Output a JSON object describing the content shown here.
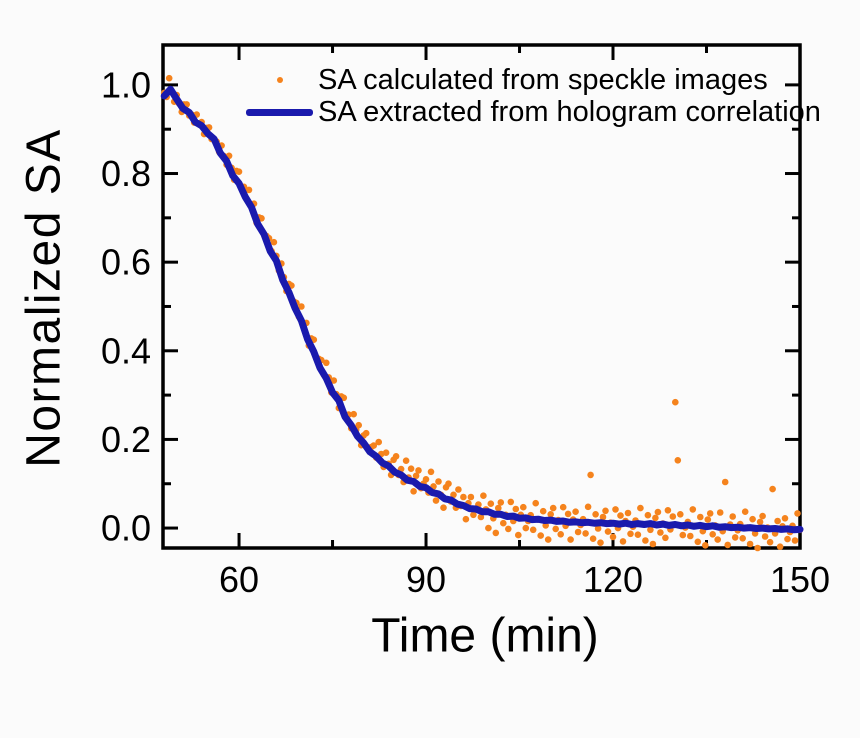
{
  "figure": {
    "y_axis_title": "Normalized SA",
    "x_axis_title": "Time (min)",
    "legend": [
      {
        "marker": "dot",
        "label": "SA calculated from speckle images"
      },
      {
        "marker": "line",
        "label": "SA extracted from hologram correlation"
      }
    ]
  },
  "chart_data": {
    "type": "scatter",
    "title": "",
    "xlabel": "Time (min)",
    "ylabel": "Normalized SA",
    "xlim": [
      47.8,
      150
    ],
    "ylim": [
      -0.045,
      1.09
    ],
    "grid": false,
    "legend_position": "top-left-inside",
    "x_major_ticks": [
      60,
      90,
      120,
      150
    ],
    "x_major_tick_labels": [
      "60",
      "90",
      "120",
      "150"
    ],
    "x_minor_ticks": [
      75,
      105,
      135
    ],
    "y_major_ticks": [
      0.0,
      0.2,
      0.4,
      0.6,
      0.8,
      1.0
    ],
    "y_major_tick_labels": [
      "0.0",
      "0.2",
      "0.4",
      "0.6",
      "0.8",
      "1.0"
    ],
    "y_minor_ticks": [
      0.1,
      0.3,
      0.5,
      0.7,
      0.9
    ],
    "colors": {
      "scatter": "#f5831d",
      "line": "#1a1aad",
      "axis": "#000000",
      "background": "#fbfbfb"
    },
    "series": [
      {
        "name": "SA calculated from speckle images",
        "type": "scatter",
        "t0": 48.0,
        "dt": 0.4,
        "values": [
          0.982,
          0.973,
          1.015,
          0.985,
          0.962,
          0.977,
          0.958,
          0.939,
          0.956,
          0.956,
          0.931,
          0.933,
          0.915,
          0.933,
          0.911,
          0.916,
          0.889,
          0.903,
          0.904,
          0.878,
          0.876,
          0.872,
          0.849,
          0.863,
          0.839,
          0.82,
          0.84,
          0.813,
          0.786,
          0.806,
          0.804,
          0.77,
          0.77,
          0.742,
          0.763,
          0.729,
          0.732,
          0.689,
          0.701,
          0.699,
          0.663,
          0.659,
          0.654,
          0.625,
          0.645,
          0.614,
          0.581,
          0.597,
          0.566,
          0.535,
          0.551,
          0.547,
          0.511,
          0.508,
          0.477,
          0.5,
          0.459,
          0.463,
          0.412,
          0.428,
          0.425,
          0.383,
          0.382,
          0.379,
          0.346,
          0.373,
          0.34,
          0.306,
          0.333,
          0.302,
          0.271,
          0.297,
          0.294,
          0.253,
          0.256,
          0.225,
          0.257,
          0.222,
          0.232,
          0.187,
          0.209,
          0.214,
          0.178,
          0.183,
          0.186,
          0.159,
          0.194,
          0.167,
          0.138,
          0.17,
          0.145,
          0.12,
          0.154,
          0.162,
          0.12,
          0.133,
          0.104,
          0.152,
          0.114,
          0.134,
          0.083,
          0.118,
          0.13,
          0.09,
          0.1,
          0.11,
          0.08,
          0.127,
          0.094,
          0.062,
          0.105,
          0.075,
          0.046,
          0.092,
          0.1,
          0.06,
          0.075,
          0.046,
          0.087,
          0.05,
          0.07,
          0.02,
          0.056,
          0.07,
          0.03,
          0.042,
          0.053,
          0.025,
          0.073,
          0.042,
          0.0,
          0.055,
          0.022,
          -0.011,
          0.045,
          0.058,
          0.011,
          0.03,
          -0.002,
          0.059,
          0.016,
          0.043,
          -0.016,
          0.03,
          0.047,
          0.0,
          0.016,
          0.029,
          -0.004,
          0.056,
          0.019,
          -0.017,
          0.038,
          0.006,
          -0.026,
          0.031,
          0.045,
          -0.002,
          0.018,
          -0.014,
          0.047,
          0.005,
          0.032,
          -0.026,
          0.019,
          0.037,
          -0.009,
          0.007,
          0.02,
          -0.012,
          0.048,
          0.12,
          -0.024,
          0.031,
          -0.001,
          -0.033,
          0.025,
          0.039,
          -0.008,
          0.012,
          -0.02,
          0.042,
          0.0,
          0.028,
          -0.03,
          0.016,
          0.034,
          -0.013,
          0.003,
          0.017,
          -0.015,
          0.045,
          0.009,
          -0.028,
          0.029,
          -0.004,
          -0.036,
          0.023,
          0.036,
          -0.01,
          0.01,
          -0.022,
          0.04,
          -0.003,
          0.026,
          0.284,
          0.153,
          0.031,
          -0.016,
          0.001,
          0.014,
          -0.018,
          0.042,
          0.005,
          -0.031,
          0.025,
          -0.007,
          -0.039,
          0.019,
          0.033,
          -0.014,
          0.006,
          -0.026,
          0.035,
          -0.007,
          0.104,
          -0.038,
          0.008,
          0.026,
          -0.021,
          -0.005,
          0.009,
          -0.023,
          0.037,
          0.001,
          -0.036,
          0.02,
          -0.012,
          -0.045,
          0.014,
          0.027,
          -0.019,
          0.001,
          -0.032,
          0.088,
          -0.012,
          0.016,
          -0.042,
          0.004,
          0.022,
          -0.025,
          -0.009,
          0.005,
          -0.028,
          0.033,
          -0.004
        ]
      },
      {
        "name": "SA extracted from hologram correlation",
        "type": "line",
        "t0": 48.0,
        "dt": 1.0,
        "values": [
          0.975,
          0.99,
          0.968,
          0.947,
          0.938,
          0.916,
          0.908,
          0.89,
          0.878,
          0.846,
          0.828,
          0.795,
          0.778,
          0.747,
          0.724,
          0.686,
          0.663,
          0.625,
          0.603,
          0.56,
          0.532,
          0.496,
          0.468,
          0.426,
          0.398,
          0.361,
          0.338,
          0.306,
          0.288,
          0.251,
          0.232,
          0.207,
          0.192,
          0.172,
          0.162,
          0.147,
          0.14,
          0.126,
          0.12,
          0.108,
          0.105,
          0.094,
          0.091,
          0.08,
          0.077,
          0.066,
          0.063,
          0.054,
          0.051,
          0.044,
          0.043,
          0.037,
          0.037,
          0.031,
          0.031,
          0.026,
          0.027,
          0.022,
          0.023,
          0.019,
          0.02,
          0.017,
          0.018,
          0.015,
          0.016,
          0.013,
          0.014,
          0.012,
          0.013,
          0.011,
          0.012,
          0.01,
          0.011,
          0.009,
          0.011,
          0.008,
          0.01,
          0.008,
          0.01,
          0.007,
          0.009,
          0.006,
          0.008,
          0.005,
          0.007,
          0.004,
          0.006,
          0.003,
          0.005,
          0.002,
          0.003,
          0.001,
          0.002,
          0.0,
          0.001,
          -0.001,
          0.0,
          -0.002,
          -0.001,
          -0.003,
          -0.002,
          -0.004,
          -0.003
        ]
      }
    ]
  }
}
